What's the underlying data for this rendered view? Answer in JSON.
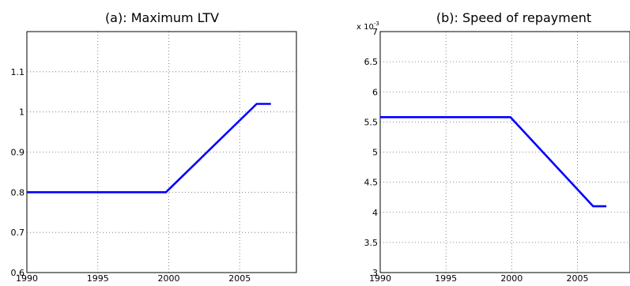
{
  "chart_data": [
    {
      "type": "line",
      "title": "(a): Maximum LTV",
      "xlabel": "",
      "ylabel": "",
      "xlim": [
        1990,
        2009
      ],
      "ylim": [
        0.6,
        1.2
      ],
      "xticks": [
        1990,
        1995,
        2000,
        2005
      ],
      "yticks": [
        0.6,
        0.7,
        0.8,
        0.9,
        1,
        1.1
      ],
      "ytick_labels": [
        "0.6",
        "0.7",
        "0.8",
        "0.9",
        "1",
        "1.1"
      ],
      "grid": true,
      "color": "#0000ff",
      "series": [
        {
          "x": [
            1990,
            1999.8,
            2006.2,
            2007.2
          ],
          "values": [
            0.8,
            0.8,
            1.02,
            1.02
          ]
        }
      ]
    },
    {
      "type": "line",
      "title": "(b): Speed of repayment",
      "xlabel": "",
      "ylabel": "",
      "multiplier": "x 10",
      "multiplier_exp": "-3",
      "xlim": [
        1990,
        2009
      ],
      "ylim": [
        0.003,
        0.007
      ],
      "xticks": [
        1990,
        1995,
        2000,
        2005
      ],
      "yticks": [
        0.003,
        0.0035,
        0.004,
        0.0045,
        0.005,
        0.0055,
        0.006,
        0.0065,
        0.007
      ],
      "ytick_labels": [
        "3",
        "3.5",
        "4",
        "4.5",
        "5",
        "5.5",
        "6",
        "6.5",
        "7"
      ],
      "grid": true,
      "color": "#0000ff",
      "series": [
        {
          "x": [
            1990,
            1999.9,
            2006.2,
            2007.2
          ],
          "values": [
            0.00558,
            0.00558,
            0.0041,
            0.0041
          ]
        }
      ]
    }
  ]
}
